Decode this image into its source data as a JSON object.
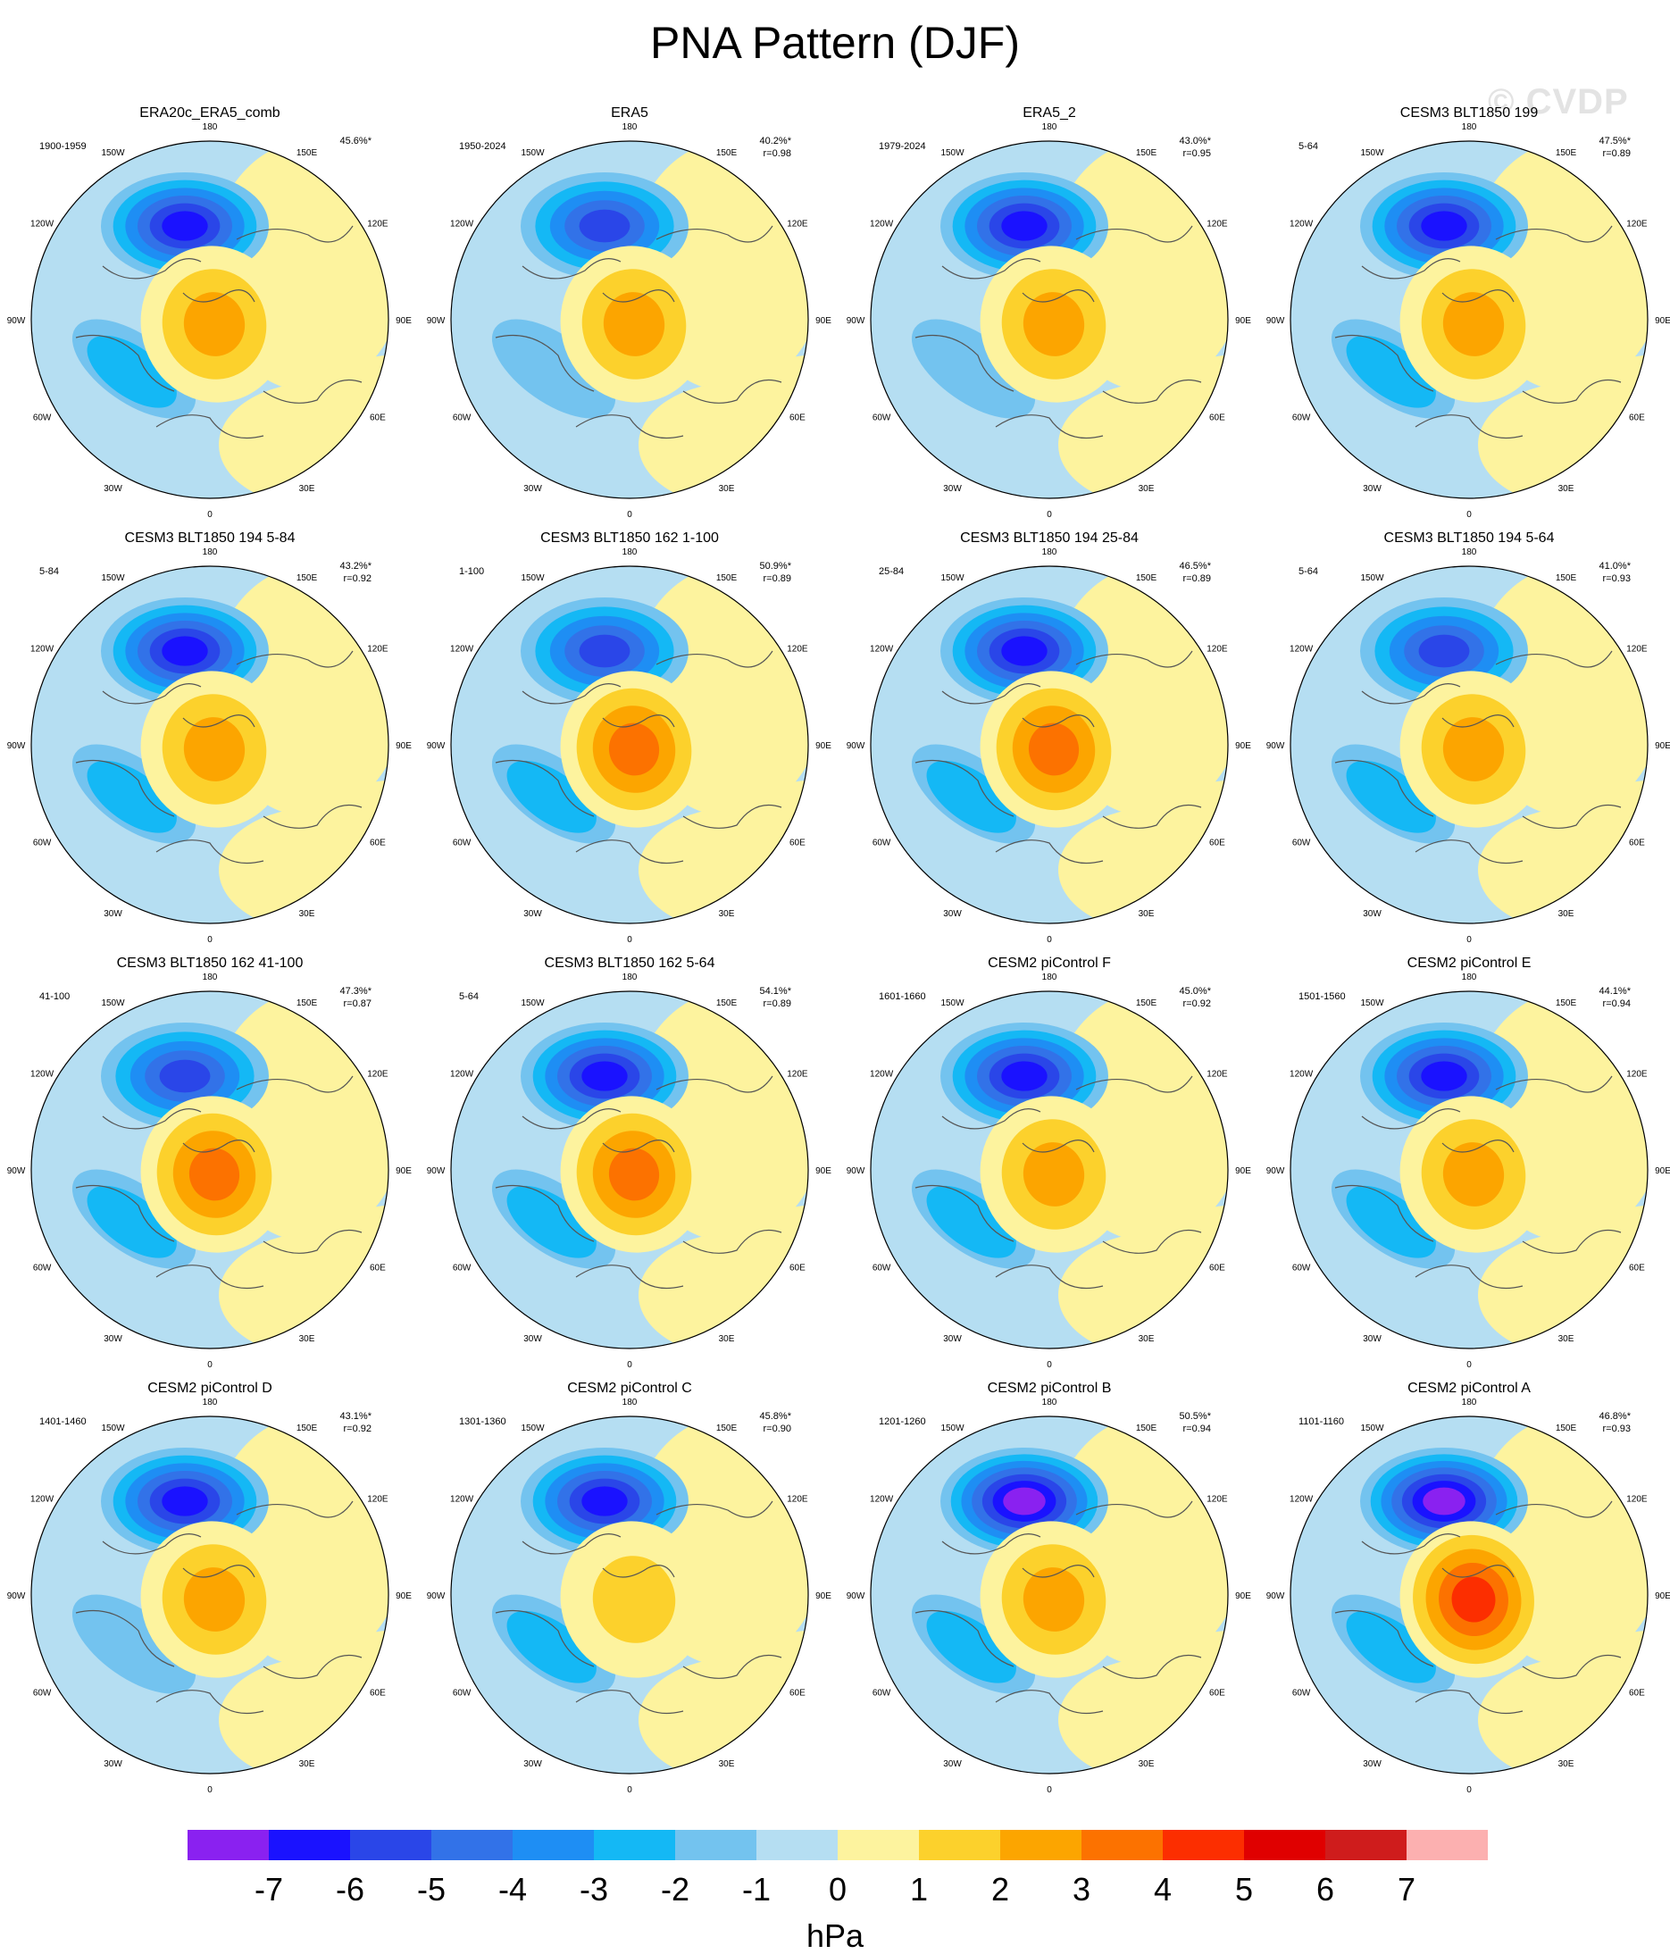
{
  "title": "PNA Pattern (DJF)",
  "watermark": "© CVDP",
  "chart_data": {
    "type": "heatmap",
    "projection": "north polar stereographic",
    "units": "hPa",
    "longitude_labels": [
      "180",
      "150E",
      "120E",
      "90E",
      "60E",
      "30E",
      "0",
      "30W",
      "60W",
      "90W",
      "120W",
      "150W"
    ],
    "colorbar": {
      "ticks": [
        "-7",
        "-6",
        "-5",
        "-4",
        "-3",
        "-2",
        "-1",
        "0",
        "1",
        "2",
        "3",
        "4",
        "5",
        "6",
        "7"
      ],
      "colors": [
        "#8a21f0",
        "#1a12ff",
        "#2a46e8",
        "#3272e8",
        "#1e8ef4",
        "#14b8f5",
        "#73c3ef",
        "#b5def2",
        "#fdf39e",
        "#fcd12c",
        "#fca500",
        "#fc7200",
        "#fc2e00",
        "#e00000",
        "#cf1c1c",
        "#fcb0b0"
      ]
    },
    "panels": [
      {
        "title": "ERA20c_ERA5_comb",
        "years": "1900-1959",
        "variance": "45.6%*",
        "r": "",
        "low": -6,
        "high": 3,
        "atl": -2,
        "ne": 1
      },
      {
        "title": "ERA5",
        "years": "1950-2024",
        "variance": "40.2%*",
        "r": "r=0.98",
        "low": -5,
        "high": 3,
        "atl": -1,
        "ne": 1
      },
      {
        "title": "ERA5_2",
        "years": "1979-2024",
        "variance": "43.0%*",
        "r": "r=0.95",
        "low": -6,
        "high": 3,
        "atl": -1,
        "ne": 1
      },
      {
        "title": "CESM3 BLT1850 199",
        "years": "5-64",
        "variance": "47.5%*",
        "r": "r=0.89",
        "low": -6,
        "high": 3,
        "atl": -2,
        "ne": 1
      },
      {
        "title": "CESM3 BLT1850 194 5-84",
        "years": "5-84",
        "variance": "43.2%*",
        "r": "r=0.92",
        "low": -6,
        "high": 3,
        "atl": -2,
        "ne": 1
      },
      {
        "title": "CESM3 BLT1850 162 1-100",
        "years": "1-100",
        "variance": "50.9%*",
        "r": "r=0.89",
        "low": -5,
        "high": 4,
        "atl": -2,
        "ne": 1
      },
      {
        "title": "CESM3 BLT1850 194 25-84",
        "years": "25-84",
        "variance": "46.5%*",
        "r": "r=0.89",
        "low": -6,
        "high": 4,
        "atl": -2,
        "ne": 1
      },
      {
        "title": "CESM3 BLT1850 194 5-64",
        "years": "5-64",
        "variance": "41.0%*",
        "r": "r=0.93",
        "low": -5,
        "high": 3,
        "atl": -2,
        "ne": 1
      },
      {
        "title": "CESM3 BLT1850 162 41-100",
        "years": "41-100",
        "variance": "47.3%*",
        "r": "r=0.87",
        "low": -5,
        "high": 4,
        "atl": -2,
        "ne": 1
      },
      {
        "title": "CESM3 BLT1850 162 5-64",
        "years": "5-64",
        "variance": "54.1%*",
        "r": "r=0.89",
        "low": -6,
        "high": 4,
        "atl": -2,
        "ne": 1
      },
      {
        "title": "CESM2 piControl F",
        "years": "1601-1660",
        "variance": "45.0%*",
        "r": "r=0.92",
        "low": -6,
        "high": 3,
        "atl": -2,
        "ne": 1
      },
      {
        "title": "CESM2 piControl E",
        "years": "1501-1560",
        "variance": "44.1%*",
        "r": "r=0.94",
        "low": -6,
        "high": 3,
        "atl": -2,
        "ne": 1
      },
      {
        "title": "CESM2 piControl D",
        "years": "1401-1460",
        "variance": "43.1%*",
        "r": "r=0.92",
        "low": -6,
        "high": 3,
        "atl": -1,
        "ne": 1
      },
      {
        "title": "CESM2 piControl C",
        "years": "1301-1360",
        "variance": "45.8%*",
        "r": "r=0.90",
        "low": -6,
        "high": 2,
        "atl": -2,
        "ne": 1
      },
      {
        "title": "CESM2 piControl B",
        "years": "1201-1260",
        "variance": "50.5%*",
        "r": "r=0.94",
        "low": -7,
        "high": 3,
        "atl": -2,
        "ne": 1
      },
      {
        "title": "CESM2 piControl A",
        "years": "1101-1160",
        "variance": "46.8%*",
        "r": "r=0.93",
        "low": -7,
        "high": 5,
        "atl": -2,
        "ne": 1
      }
    ]
  }
}
